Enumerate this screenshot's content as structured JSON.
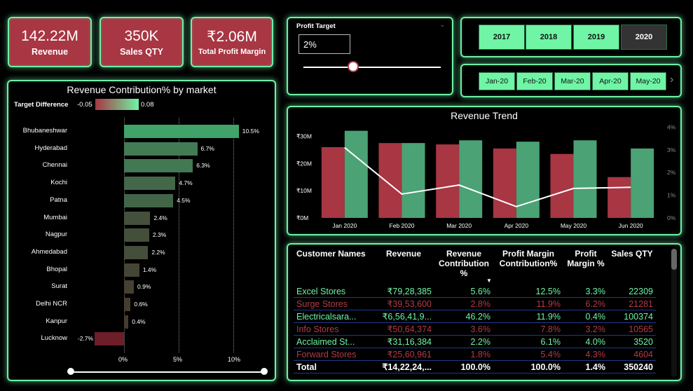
{
  "kpis": [
    {
      "value": "142.22M",
      "label": "Revenue"
    },
    {
      "value": "350K",
      "label": "Sales QTY"
    },
    {
      "value": "₹2.06M",
      "label": "Total Profit Margin"
    }
  ],
  "profit_target": {
    "title": "Profit Target",
    "value": "2%",
    "slider_fraction": 0.36
  },
  "years": [
    "2017",
    "2018",
    "2019",
    "2020"
  ],
  "selected_year": "2020",
  "months": [
    "Jan-20",
    "Feb-20",
    "Mar-20",
    "Apr-20",
    "May-20"
  ],
  "market_chart": {
    "title": "Revenue Contribution% by market",
    "legend_label": "Target Difference",
    "legend_min": "-0.05",
    "legend_max": "0.08",
    "xticks": [
      "0%",
      "5%",
      "10%"
    ],
    "colors": {
      "high": "#3fa36a",
      "low": "#a83643"
    }
  },
  "revenue_trend": {
    "title": "Revenue Trend",
    "colors": {
      "bar1": "#a83643",
      "bar2": "#4aa275",
      "line": "#ffffff"
    }
  },
  "chart_data": [
    {
      "type": "bar",
      "orientation": "horizontal",
      "title": "Revenue Contribution% by market",
      "categories": [
        "Bhubaneshwar",
        "Hyderabad",
        "Chennai",
        "Kochi",
        "Patna",
        "Mumbai",
        "Nagpur",
        "Ahmedabad",
        "Bhopal",
        "Surat",
        "Delhi NCR",
        "Kanpur",
        "Lucknow"
      ],
      "values": [
        10.5,
        6.7,
        6.3,
        4.7,
        4.5,
        2.4,
        2.3,
        2.2,
        1.4,
        0.9,
        0.6,
        0.4,
        -2.7
      ],
      "value_labels": [
        "10.5%",
        "6.7%",
        "6.3%",
        "4.7%",
        "4.5%",
        "2.4%",
        "2.3%",
        "2.2%",
        "1.4%",
        "0.9%",
        "0.6%",
        "0.4%",
        "-2.7%"
      ],
      "xlim": [
        -3,
        11
      ]
    },
    {
      "type": "bar",
      "title": "Revenue Trend",
      "categories": [
        "Jan 2020",
        "Feb 2020",
        "Mar 2020",
        "Apr 2020",
        "May 2020",
        "Jun 2020"
      ],
      "series": [
        {
          "values": [
            26,
            27.5,
            27,
            25.5,
            23.5,
            15
          ]
        },
        {
          "values": [
            32,
            27.5,
            28.5,
            28,
            28.5,
            25.5
          ]
        }
      ],
      "line": {
        "values": [
          3.1,
          1.05,
          1.45,
          0.5,
          1.3,
          1.35
        ]
      },
      "yticks_left": [
        "₹0M",
        "₹10M",
        "₹20M",
        "₹30M"
      ],
      "yticks_right": [
        "0%",
        "1%",
        "2%",
        "3%",
        "4%"
      ],
      "ylim": [
        0,
        35
      ],
      "y2lim": [
        0,
        4.2
      ]
    }
  ],
  "table": {
    "headers": [
      "Customer Names",
      "Revenue",
      "Revenue Contribution %",
      "Profit Margin Contribution%",
      "Profit Margin %",
      "Sales QTY"
    ],
    "rows": [
      {
        "c": [
          "Excel Stores",
          "₹79,28,385",
          "5.6%",
          "12.5%",
          "3.3%",
          "22309"
        ],
        "t": "g"
      },
      {
        "c": [
          "Surge Stores",
          "₹39,53,600",
          "2.8%",
          "11.9%",
          "6.2%",
          "21281"
        ],
        "t": "r"
      },
      {
        "c": [
          "Electricalsara...",
          "₹6,56,41,9...",
          "46.2%",
          "11.9%",
          "0.4%",
          "100374"
        ],
        "t": "g"
      },
      {
        "c": [
          "Info Stores",
          "₹50,64,374",
          "3.6%",
          "7.8%",
          "3.2%",
          "10565"
        ],
        "t": "r"
      },
      {
        "c": [
          "Acclaimed St...",
          "₹31,16,384",
          "2.2%",
          "6.1%",
          "4.0%",
          "3520"
        ],
        "t": "g"
      },
      {
        "c": [
          "Forward Stores",
          "₹25,60,961",
          "1.8%",
          "5.4%",
          "4.3%",
          "4604"
        ],
        "t": "r"
      }
    ],
    "total": [
      "Total",
      "₹14,22,24,...",
      "100.0%",
      "100.0%",
      "1.4%",
      "350240"
    ]
  }
}
